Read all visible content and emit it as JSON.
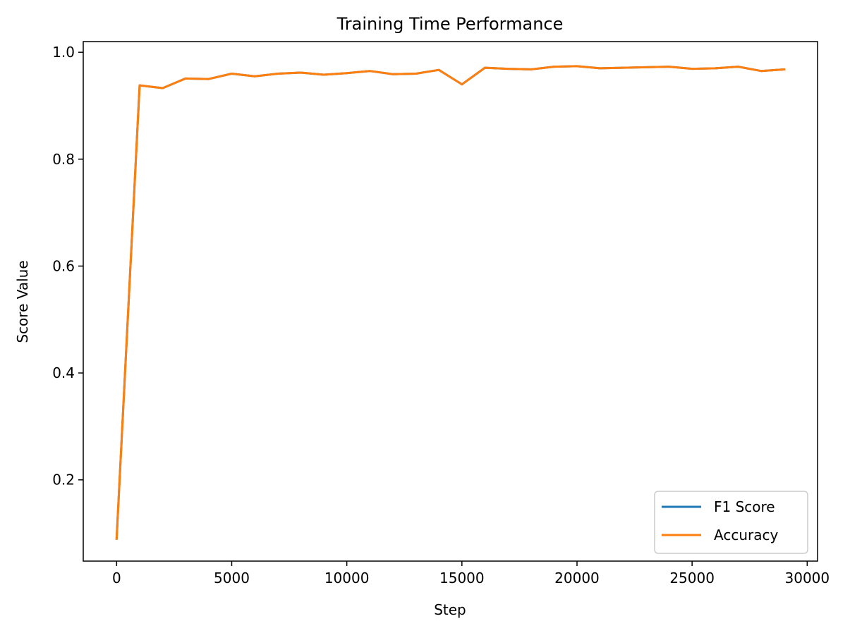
{
  "chart_data": {
    "type": "line",
    "title": "Training Time Performance",
    "xlabel": "Step",
    "ylabel": "Score Value",
    "xlim": [
      -1450,
      30450
    ],
    "ylim": [
      0.048,
      1.02
    ],
    "xticks": [
      0,
      5000,
      10000,
      15000,
      20000,
      25000,
      30000
    ],
    "yticks": [
      0.2,
      0.4,
      0.6,
      0.8,
      1.0
    ],
    "xtick_labels": [
      "0",
      "5000",
      "10000",
      "15000",
      "20000",
      "25000",
      "30000"
    ],
    "ytick_labels": [
      "0.2",
      "0.4",
      "0.6",
      "0.8",
      "1.0"
    ],
    "grid": false,
    "legend_position": "lower-right",
    "x": [
      0,
      1000,
      2000,
      3000,
      4000,
      5000,
      6000,
      7000,
      8000,
      9000,
      10000,
      11000,
      12000,
      13000,
      14000,
      15000,
      16000,
      17000,
      18000,
      19000,
      20000,
      21000,
      22000,
      23000,
      24000,
      25000,
      26000,
      27000,
      28000,
      29000
    ],
    "series": [
      {
        "name": "F1 Score",
        "color": "#1f77b4",
        "values": [
          0.09,
          0.938,
          0.933,
          0.951,
          0.95,
          0.96,
          0.955,
          0.96,
          0.962,
          0.958,
          0.961,
          0.965,
          0.959,
          0.96,
          0.967,
          0.94,
          0.971,
          0.969,
          0.968,
          0.973,
          0.974,
          0.97,
          0.971,
          0.972,
          0.973,
          0.969,
          0.97,
          0.973,
          0.965,
          0.968
        ]
      },
      {
        "name": "Accuracy",
        "color": "#ff7f0e",
        "values": [
          0.09,
          0.938,
          0.933,
          0.951,
          0.95,
          0.96,
          0.955,
          0.96,
          0.962,
          0.958,
          0.961,
          0.965,
          0.959,
          0.96,
          0.967,
          0.94,
          0.971,
          0.969,
          0.968,
          0.973,
          0.974,
          0.97,
          0.971,
          0.972,
          0.973,
          0.969,
          0.97,
          0.973,
          0.965,
          0.968
        ]
      }
    ]
  }
}
